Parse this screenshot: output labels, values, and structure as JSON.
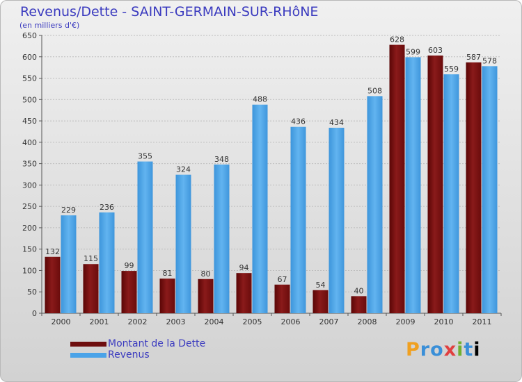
{
  "chart_data": {
    "type": "bar",
    "title": "Revenus/Dette - SAINT-GERMAIN-SUR-RHôNE",
    "subtitle": "(en milliers d'€)",
    "categories": [
      "2000",
      "2001",
      "2002",
      "2003",
      "2004",
      "2005",
      "2006",
      "2007",
      "2008",
      "2009",
      "2010",
      "2011"
    ],
    "series": [
      {
        "name": "Montant de la Dette",
        "color": "#7a1010",
        "values": [
          132,
          115,
          99,
          81,
          80,
          94,
          67,
          54,
          40,
          628,
          603,
          587
        ]
      },
      {
        "name": "Revenus",
        "color": "#4aa3e8",
        "values": [
          229,
          236,
          355,
          324,
          348,
          488,
          436,
          434,
          508,
          599,
          559,
          578
        ]
      }
    ],
    "ylim": [
      0,
      650
    ],
    "yticks": [
      0,
      50,
      100,
      150,
      200,
      250,
      300,
      350,
      400,
      450,
      500,
      550,
      600,
      650
    ],
    "grid": true,
    "legend": "bottom-left"
  },
  "logo": {
    "letters": [
      "P",
      "r",
      "o",
      "x",
      "i",
      "t",
      "i"
    ]
  }
}
